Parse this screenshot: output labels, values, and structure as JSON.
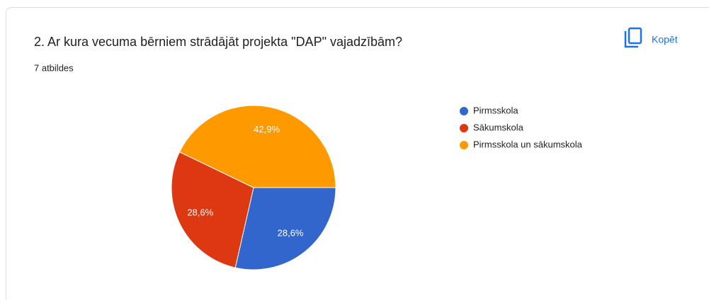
{
  "header": {
    "title": "2. Ar kura vecuma bērniem strādājāt projekta \"DAP\" vajadzībām?",
    "subtitle": "7 atbildes",
    "copy_button": "Kopēt"
  },
  "chart_data": {
    "type": "pie",
    "categories": [
      "Pirmsskola",
      "Sākumskola",
      "Pirmsskola un sākumskola"
    ],
    "values": [
      28.6,
      28.6,
      42.9
    ],
    "value_labels": [
      "28,6%",
      "28,6%",
      "42,9%"
    ],
    "colors": [
      "#3366cc",
      "#dc3912",
      "#ff9900"
    ],
    "legend": "right"
  }
}
